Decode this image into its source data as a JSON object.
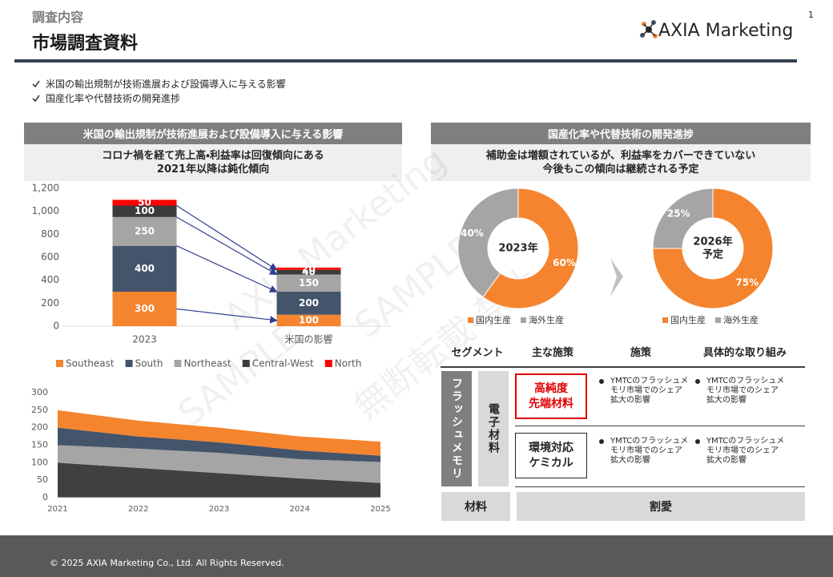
{
  "header": {
    "section": "調査内容",
    "title": "市場調査資料",
    "logo": "AXIA Marketing",
    "page": "1"
  },
  "bullets": [
    "米国の輸出規制が技術進展および設備導入に与える影響",
    "国産化率や代替技術の開発進捗"
  ],
  "left_panel": {
    "heading": "米国の輸出規制が技術進展および設備導入に与える影響",
    "subtitle": [
      "コロナ禍を経て売上高・利益率は回復傾向にある",
      "2021年以降は鈍化傾向"
    ]
  },
  "right_panel": {
    "heading": "国産化率や代替技術の開発進捗",
    "subtitle": [
      "補助金は増額されているが、利益率をカバーできていない",
      "今後もこの傾向は継続される予定"
    ]
  },
  "chart_data": [
    {
      "type": "bar",
      "stacked": true,
      "categories": [
        "2023",
        "米国の影響"
      ],
      "series": [
        {
          "name": "Southeast",
          "color": "#f5842e",
          "values": [
            300,
            100
          ]
        },
        {
          "name": "South",
          "color": "#44546a",
          "values": [
            400,
            200
          ]
        },
        {
          "name": "Northeast",
          "color": "#a5a5a5",
          "values": [
            250,
            150
          ]
        },
        {
          "name": "Central-West",
          "color": "#3b3b3b",
          "values": [
            100,
            40
          ]
        },
        {
          "name": "North",
          "color": "#ff0000",
          "values": [
            50,
            20
          ]
        }
      ],
      "ylim": [
        0,
        1200
      ],
      "yticks": [
        0,
        200,
        400,
        600,
        800,
        {
          "value": 1000,
          "label": "1,000"
        },
        {
          "value": 1200,
          "label": "1,200"
        }
      ],
      "grid": false,
      "legend": "bottom"
    },
    {
      "type": "area",
      "stacked": true,
      "x": [
        2021,
        2022,
        2023,
        2024,
        2025
      ],
      "series": [
        {
          "color": "#404040",
          "values": [
            100,
            85,
            70,
            55,
            42
          ]
        },
        {
          "color": "#a5a5a5",
          "values": [
            50,
            55,
            58,
            55,
            60
          ]
        },
        {
          "color": "#44546a",
          "values": [
            50,
            35,
            30,
            25,
            18
          ]
        },
        {
          "color": "#f5842e",
          "values": [
            50,
            45,
            42,
            40,
            40
          ]
        }
      ],
      "xlim": [
        2021,
        2025
      ],
      "xticks": [
        2021,
        2022,
        2023,
        2024,
        2025
      ],
      "ylim": [
        0,
        300
      ],
      "yticks": [
        0,
        50,
        100,
        150,
        200,
        250,
        300
      ],
      "grid": false
    },
    {
      "type": "pie",
      "donut": true,
      "center_label": [
        "2023年"
      ],
      "categories": [
        "国内生産",
        "海外生産"
      ],
      "values": [
        60,
        40
      ],
      "value_labels": [
        "60%",
        "40%"
      ],
      "colors": [
        "#f5842e",
        "#a5a5a5"
      ],
      "legend": "bottom"
    },
    {
      "type": "pie",
      "donut": true,
      "center_label": [
        "2026年",
        "予定"
      ],
      "categories": [
        "国内生産",
        "海外生産"
      ],
      "values": [
        75,
        25
      ],
      "value_labels": [
        "75%",
        "25%"
      ],
      "colors": [
        "#f5842e",
        "#a5a5a5"
      ],
      "legend": "bottom"
    }
  ],
  "table": {
    "headers": [
      "セグメント",
      "主な施策",
      "施策",
      "具体的な取り組み"
    ],
    "segment": "フラッシュメモリ",
    "sub_segment": "電子材料",
    "rows": [
      {
        "measure": [
          "高純度",
          "先端材料"
        ],
        "details": [
          "YMTCのフラッシュメモリ市場でのシェア拡大の影響",
          "YMTCのフラッシュメモリ市場でのシェア拡大の影響"
        ]
      },
      {
        "measure": [
          "環境対応",
          "ケミカル"
        ],
        "details": [
          "YMTCのフラッシュメモリ市場でのシェア拡大の影響",
          "YMTCのフラッシュメモリ市場でのシェア拡大の影響"
        ]
      }
    ],
    "footer_row": [
      "材料",
      "割愛"
    ]
  },
  "watermarks": [
    "AXIA Marketing",
    "SAMPLE",
    "SAMPLE",
    "無断転載・禁止"
  ],
  "footer": "© 2025 AXIA Marketing Co., Ltd. All Rights Reserved."
}
